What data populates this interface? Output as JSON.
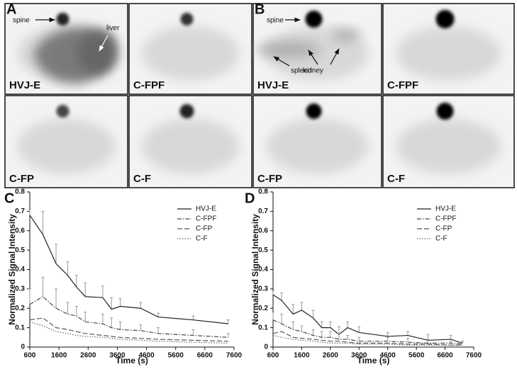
{
  "figure": {
    "panels": [
      {
        "label": "A",
        "images": [
          "HVJ-E",
          "C-FPF",
          "C-FP",
          "C-F"
        ],
        "annotations": [
          "spine",
          "liver"
        ]
      },
      {
        "label": "B",
        "images": [
          "HVJ-E",
          "C-FPF",
          "C-FP",
          "C-F"
        ],
        "annotations": [
          "spine",
          "spleen",
          "kidney"
        ]
      }
    ]
  },
  "chart_data": [
    {
      "type": "line",
      "panel_label": "C",
      "xlabel": "Time (s)",
      "ylabel": "Normalized Signal Intensity",
      "x": [
        600,
        1050,
        1500,
        1900,
        2200,
        2500,
        3100,
        3400,
        3700,
        4400,
        5000,
        6200,
        7400
      ],
      "xlim": [
        600,
        7600
      ],
      "xticks": [
        600,
        1600,
        2600,
        3600,
        4600,
        5600,
        6600,
        7600
      ],
      "ylim": [
        0,
        0.8
      ],
      "yticks": [
        0,
        0.1,
        0.2,
        0.3,
        0.4,
        0.5,
        0.6,
        0.7,
        0.8
      ],
      "legend": "upper right",
      "series": [
        {
          "name": "HVJ-E",
          "color": "#222222",
          "style": "solid",
          "values": [
            0.68,
            0.58,
            0.43,
            0.37,
            0.31,
            0.26,
            0.255,
            0.195,
            0.21,
            0.2,
            0.155,
            0.14,
            0.12
          ],
          "errors": [
            0.03,
            0.12,
            0.1,
            0.07,
            0.06,
            0.07,
            0.06,
            0.06,
            0.04,
            0.03,
            0.02,
            0.02,
            0.02
          ]
        },
        {
          "name": "C-FPF",
          "color": "#444444",
          "style": "dashdot",
          "values": [
            0.22,
            0.26,
            0.2,
            0.17,
            0.16,
            0.13,
            0.12,
            0.1,
            0.09,
            0.085,
            0.07,
            0.06,
            0.05
          ],
          "errors": [
            0.08,
            0.1,
            0.1,
            0.06,
            0.05,
            0.05,
            0.05,
            0.05,
            0.04,
            0.03,
            0.03,
            0.03,
            0.02
          ]
        },
        {
          "name": "C-FP",
          "color": "#555555",
          "style": "dash",
          "values": [
            0.14,
            0.15,
            0.1,
            0.09,
            0.08,
            0.07,
            0.06,
            0.055,
            0.05,
            0.045,
            0.04,
            0.035,
            0.03
          ]
        },
        {
          "name": "C-F",
          "color": "#666666",
          "style": "dot",
          "values": [
            0.13,
            0.11,
            0.08,
            0.07,
            0.06,
            0.055,
            0.05,
            0.045,
            0.04,
            0.035,
            0.03,
            0.025,
            0.02
          ]
        }
      ]
    },
    {
      "type": "line",
      "panel_label": "D",
      "xlabel": "Time (s)",
      "ylabel": "Normalized Signal Intensity",
      "x": [
        600,
        900,
        1300,
        1600,
        2000,
        2300,
        2600,
        2900,
        3200,
        3600,
        4600,
        5300,
        6000,
        6800,
        7200
      ],
      "xlim": [
        600,
        7600
      ],
      "xticks": [
        600,
        1600,
        2600,
        3600,
        4600,
        5600,
        6600,
        7600
      ],
      "ylim": [
        0,
        0.8
      ],
      "yticks": [
        0,
        0.1,
        0.2,
        0.3,
        0.4,
        0.5,
        0.6,
        0.7,
        0.8
      ],
      "legend": "upper right",
      "series": [
        {
          "name": "HVJ-E",
          "color": "#222222",
          "style": "solid",
          "values": [
            0.27,
            0.24,
            0.17,
            0.19,
            0.15,
            0.1,
            0.1,
            0.065,
            0.1,
            0.075,
            0.055,
            0.06,
            0.035,
            0.04,
            0.02
          ],
          "errors": [
            0.02,
            0.04,
            0.05,
            0.04,
            0.04,
            0.03,
            0.03,
            0.04,
            0.03,
            0.03,
            0.02,
            0.02,
            0.03,
            0.02,
            0.01
          ]
        },
        {
          "name": "C-FPF",
          "color": "#444444",
          "style": "dashdot",
          "values": [
            0.14,
            0.12,
            0.09,
            0.08,
            0.06,
            0.05,
            0.05,
            0.04,
            0.04,
            0.03,
            0.03,
            0.025,
            0.02,
            0.02,
            0.015
          ],
          "errors": [
            0.04,
            0.05,
            0.04,
            0.03,
            0.03,
            0.03,
            0.03,
            0.03,
            0.02,
            0.02,
            0.02,
            0.02,
            0.02,
            0.01,
            0.01
          ]
        },
        {
          "name": "C-FP",
          "color": "#555555",
          "style": "dash",
          "values": [
            0.07,
            0.08,
            0.05,
            0.045,
            0.04,
            0.035,
            0.03,
            0.03,
            0.025,
            0.02,
            0.02,
            0.015,
            0.015,
            0.01,
            0.01
          ]
        },
        {
          "name": "C-F",
          "color": "#666666",
          "style": "dot",
          "values": [
            0.06,
            0.05,
            0.04,
            0.035,
            0.03,
            0.025,
            0.02,
            0.02,
            0.02,
            0.015,
            0.015,
            0.01,
            0.01,
            0.01,
            0.01
          ]
        }
      ]
    }
  ]
}
